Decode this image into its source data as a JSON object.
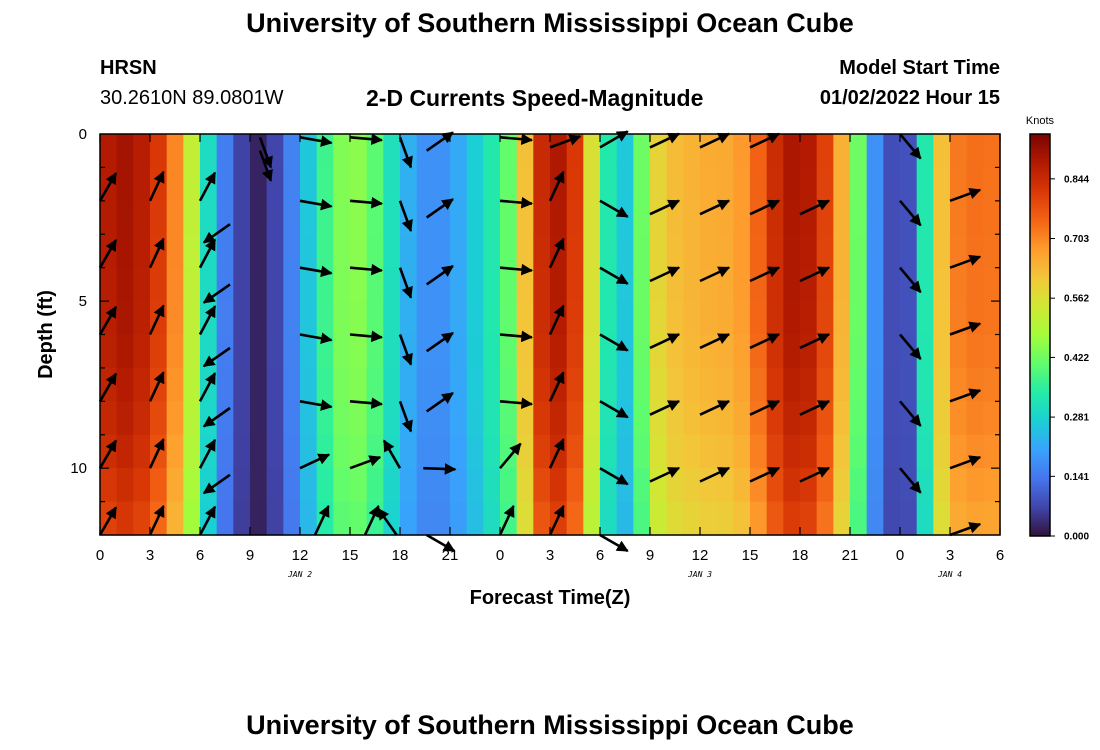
{
  "page": {
    "title_top": "University of Southern Mississippi Ocean Cube",
    "station": "HRSN",
    "location": "30.2610N  89.0801W",
    "subtitle": "2-D Currents Speed-Magnitude",
    "model_start_label": "Model Start Time",
    "model_start_value": "01/02/2022 Hour 15",
    "title_bottom": "University of Southern Mississippi Ocean Cube"
  },
  "colors": {
    "colormap": [
      "#30123b",
      "#4145ab",
      "#4675ed",
      "#39a2fc",
      "#1bcfd4",
      "#24eca6",
      "#61fc6c",
      "#a4fc3b",
      "#d1e834",
      "#f3c63a",
      "#fe9b2d",
      "#f36315",
      "#d93806",
      "#b11901",
      "#7a0403"
    ]
  },
  "chart_data": {
    "type": "heatmap",
    "title": "2-D Currents Speed-Magnitude",
    "xlabel": "Forecast Time(Z)",
    "ylabel": "Depth (ft)",
    "x_range_hours": [
      0,
      54
    ],
    "ylim": [
      0,
      12
    ],
    "x_ticks": [
      {
        "hour": 0,
        "label": "0"
      },
      {
        "hour": 3,
        "label": "3"
      },
      {
        "hour": 6,
        "label": "6"
      },
      {
        "hour": 9,
        "label": "9"
      },
      {
        "hour": 12,
        "label": "12"
      },
      {
        "hour": 15,
        "label": "15"
      },
      {
        "hour": 18,
        "label": "18"
      },
      {
        "hour": 21,
        "label": "21"
      },
      {
        "hour": 24,
        "label": "0"
      },
      {
        "hour": 27,
        "label": "3"
      },
      {
        "hour": 30,
        "label": "6"
      },
      {
        "hour": 33,
        "label": "9"
      },
      {
        "hour": 36,
        "label": "12"
      },
      {
        "hour": 39,
        "label": "15"
      },
      {
        "hour": 42,
        "label": "18"
      },
      {
        "hour": 45,
        "label": "21"
      },
      {
        "hour": 48,
        "label": "0"
      },
      {
        "hour": 51,
        "label": "3"
      },
      {
        "hour": 54,
        "label": "6"
      }
    ],
    "y_ticks": [
      {
        "depth": 0,
        "label": "0"
      },
      {
        "depth": 5,
        "label": "5"
      },
      {
        "depth": 10,
        "label": "10"
      }
    ],
    "date_labels": [
      {
        "hour": 12,
        "label": "JAN 2"
      },
      {
        "hour": 36,
        "label": "JAN 3"
      },
      {
        "hour": 51,
        "label": "JAN 4"
      }
    ],
    "colorbar": {
      "label": "Knots",
      "range": [
        0,
        0.95
      ],
      "ticks": [
        {
          "value": 0.844,
          "label": "0.844"
        },
        {
          "value": 0.703,
          "label": "0.703"
        },
        {
          "value": 0.562,
          "label": "0.562"
        },
        {
          "value": 0.422,
          "label": "0.422"
        },
        {
          "value": 0.281,
          "label": "0.281"
        },
        {
          "value": 0.141,
          "label": "0.141"
        },
        {
          "value": 0.0,
          "label": "0.000"
        }
      ]
    },
    "speed_profile_knots": [
      {
        "hour": 0,
        "speed": 0.85
      },
      {
        "hour": 0.5,
        "speed": 0.88
      },
      {
        "hour": 1,
        "speed": 0.9
      },
      {
        "hour": 2,
        "speed": 0.9
      },
      {
        "hour": 3,
        "speed": 0.85
      },
      {
        "hour": 4,
        "speed": 0.78
      },
      {
        "hour": 4.8,
        "speed": 0.66
      },
      {
        "hour": 5.5,
        "speed": 0.52
      },
      {
        "hour": 6,
        "speed": 0.4
      },
      {
        "hour": 6.5,
        "speed": 0.3
      },
      {
        "hour": 7.2,
        "speed": 0.18
      },
      {
        "hour": 8,
        "speed": 0.1
      },
      {
        "hour": 9,
        "speed": 0.03
      },
      {
        "hour": 9.8,
        "speed": 0.02
      },
      {
        "hour": 10.5,
        "speed": 0.07
      },
      {
        "hour": 11.2,
        "speed": 0.13
      },
      {
        "hour": 12,
        "speed": 0.2
      },
      {
        "hour": 13,
        "speed": 0.32
      },
      {
        "hour": 14,
        "speed": 0.42
      },
      {
        "hour": 15,
        "speed": 0.46
      },
      {
        "hour": 16,
        "speed": 0.44
      },
      {
        "hour": 17,
        "speed": 0.36
      },
      {
        "hour": 18,
        "speed": 0.26
      },
      {
        "hour": 19,
        "speed": 0.19
      },
      {
        "hour": 20,
        "speed": 0.17
      },
      {
        "hour": 21,
        "speed": 0.19
      },
      {
        "hour": 22,
        "speed": 0.24
      },
      {
        "hour": 23,
        "speed": 0.3
      },
      {
        "hour": 24,
        "speed": 0.36
      },
      {
        "hour": 25,
        "speed": 0.46
      },
      {
        "hour": 25.5,
        "speed": 0.62
      },
      {
        "hour": 26,
        "speed": 0.8
      },
      {
        "hour": 27,
        "speed": 0.89
      },
      {
        "hour": 28,
        "speed": 0.88
      },
      {
        "hour": 29,
        "speed": 0.75
      },
      {
        "hour": 29.5,
        "speed": 0.56
      },
      {
        "hour": 30,
        "speed": 0.44
      },
      {
        "hour": 30.5,
        "speed": 0.33
      },
      {
        "hour": 31.2,
        "speed": 0.24
      },
      {
        "hour": 32,
        "speed": 0.3
      },
      {
        "hour": 32.5,
        "speed": 0.42
      },
      {
        "hour": 33,
        "speed": 0.55
      },
      {
        "hour": 34,
        "speed": 0.62
      },
      {
        "hour": 36,
        "speed": 0.65
      },
      {
        "hour": 38,
        "speed": 0.66
      },
      {
        "hour": 39,
        "speed": 0.7
      },
      {
        "hour": 40,
        "speed": 0.8
      },
      {
        "hour": 41,
        "speed": 0.88
      },
      {
        "hour": 42,
        "speed": 0.9
      },
      {
        "hour": 43,
        "speed": 0.86
      },
      {
        "hour": 44,
        "speed": 0.74
      },
      {
        "hour": 45,
        "speed": 0.55
      },
      {
        "hour": 45.5,
        "speed": 0.42
      },
      {
        "hour": 46,
        "speed": 0.3
      },
      {
        "hour": 46.5,
        "speed": 0.18
      },
      {
        "hour": 47,
        "speed": 0.1
      },
      {
        "hour": 48,
        "speed": 0.06
      },
      {
        "hour": 48.8,
        "speed": 0.1
      },
      {
        "hour": 49.3,
        "speed": 0.25
      },
      {
        "hour": 49.8,
        "speed": 0.45
      },
      {
        "hour": 50.5,
        "speed": 0.62
      },
      {
        "hour": 51.5,
        "speed": 0.72
      },
      {
        "hour": 53,
        "speed": 0.74
      },
      {
        "hour": 54,
        "speed": 0.72
      }
    ],
    "depth_speed_factor": [
      {
        "depth": 0,
        "factor": 1.0
      },
      {
        "depth": 6,
        "factor": 0.99
      },
      {
        "depth": 9,
        "factor": 0.96
      },
      {
        "depth": 12,
        "factor": 0.9
      }
    ],
    "arrow_depths_ft": [
      2,
      4,
      6,
      8,
      10,
      12
    ],
    "current_arrows": [
      {
        "hour": 0,
        "dir_deg": 30,
        "depths": [
          2,
          4,
          6,
          8,
          10,
          12
        ]
      },
      {
        "hour": 3,
        "dir_deg": 25,
        "depths": [
          2,
          4,
          6,
          8,
          10,
          12
        ]
      },
      {
        "hour": 6,
        "dir_deg": 28,
        "depths": [
          2,
          4,
          6,
          8,
          10,
          12
        ]
      },
      {
        "hour": 7.8,
        "dir_deg": 235,
        "depths": [
          2.7,
          4.5,
          6.4,
          8.2,
          10.2
        ]
      },
      {
        "hour": 9.6,
        "dir_deg": 160,
        "depths": [
          0.1,
          0.5
        ]
      },
      {
        "hour": 12,
        "dir_deg": 100,
        "depths": [
          0.1,
          2,
          4,
          6,
          8
        ]
      },
      {
        "hour": 12,
        "dir_deg": 65,
        "depths": [
          10
        ]
      },
      {
        "hour": 12.9,
        "dir_deg": 25,
        "depths": [
          12
        ]
      },
      {
        "hour": 15,
        "dir_deg": 95,
        "depths": [
          0.1,
          2,
          4,
          6,
          8
        ]
      },
      {
        "hour": 15,
        "dir_deg": 70,
        "depths": [
          10
        ]
      },
      {
        "hour": 15.9,
        "dir_deg": 25,
        "depths": [
          12
        ]
      },
      {
        "hour": 18,
        "dir_deg": 160,
        "depths": [
          0.1,
          2,
          4,
          6,
          8
        ]
      },
      {
        "hour": 18,
        "dir_deg": 330,
        "depths": [
          10
        ]
      },
      {
        "hour": 17.8,
        "dir_deg": 325,
        "depths": [
          12
        ]
      },
      {
        "hour": 19.6,
        "dir_deg": 55,
        "depths": [
          0.5,
          2.5,
          4.5,
          6.5,
          8.3
        ]
      },
      {
        "hour": 19.4,
        "dir_deg": 92,
        "depths": [
          10
        ]
      },
      {
        "hour": 19.6,
        "dir_deg": 120,
        "depths": [
          12
        ]
      },
      {
        "hour": 24,
        "dir_deg": 95,
        "depths": [
          0.1,
          2,
          4,
          6,
          8
        ]
      },
      {
        "hour": 24,
        "dir_deg": 40,
        "depths": [
          10
        ]
      },
      {
        "hour": 24,
        "dir_deg": 25,
        "depths": [
          12
        ]
      },
      {
        "hour": 27,
        "dir_deg": 25,
        "depths": [
          2,
          4,
          6,
          8,
          10,
          12
        ]
      },
      {
        "hour": 27,
        "dir_deg": 70,
        "depths": [
          0.4
        ]
      },
      {
        "hour": 30,
        "dir_deg": 120,
        "depths": [
          2,
          4,
          6,
          8,
          10,
          12
        ]
      },
      {
        "hour": 30,
        "dir_deg": 60,
        "depths": [
          0.4
        ]
      },
      {
        "hour": 33,
        "dir_deg": 65,
        "depths": [
          0.4,
          2.4,
          4.4,
          6.4,
          8.4,
          10.4
        ]
      },
      {
        "hour": 36,
        "dir_deg": 65,
        "depths": [
          0.4,
          2.4,
          4.4,
          6.4,
          8.4,
          10.4
        ]
      },
      {
        "hour": 39,
        "dir_deg": 65,
        "depths": [
          0.4,
          2.4,
          4.4,
          6.4,
          8.4,
          10.4
        ]
      },
      {
        "hour": 42,
        "dir_deg": 65,
        "depths": [
          2.4,
          4.4,
          6.4,
          8.4,
          10.4
        ]
      },
      {
        "hour": 48,
        "dir_deg": 140,
        "depths": [
          0,
          2,
          4,
          6,
          8,
          10
        ]
      },
      {
        "hour": 51,
        "dir_deg": 70,
        "depths": [
          2,
          4,
          6,
          8,
          10,
          12
        ]
      }
    ]
  }
}
